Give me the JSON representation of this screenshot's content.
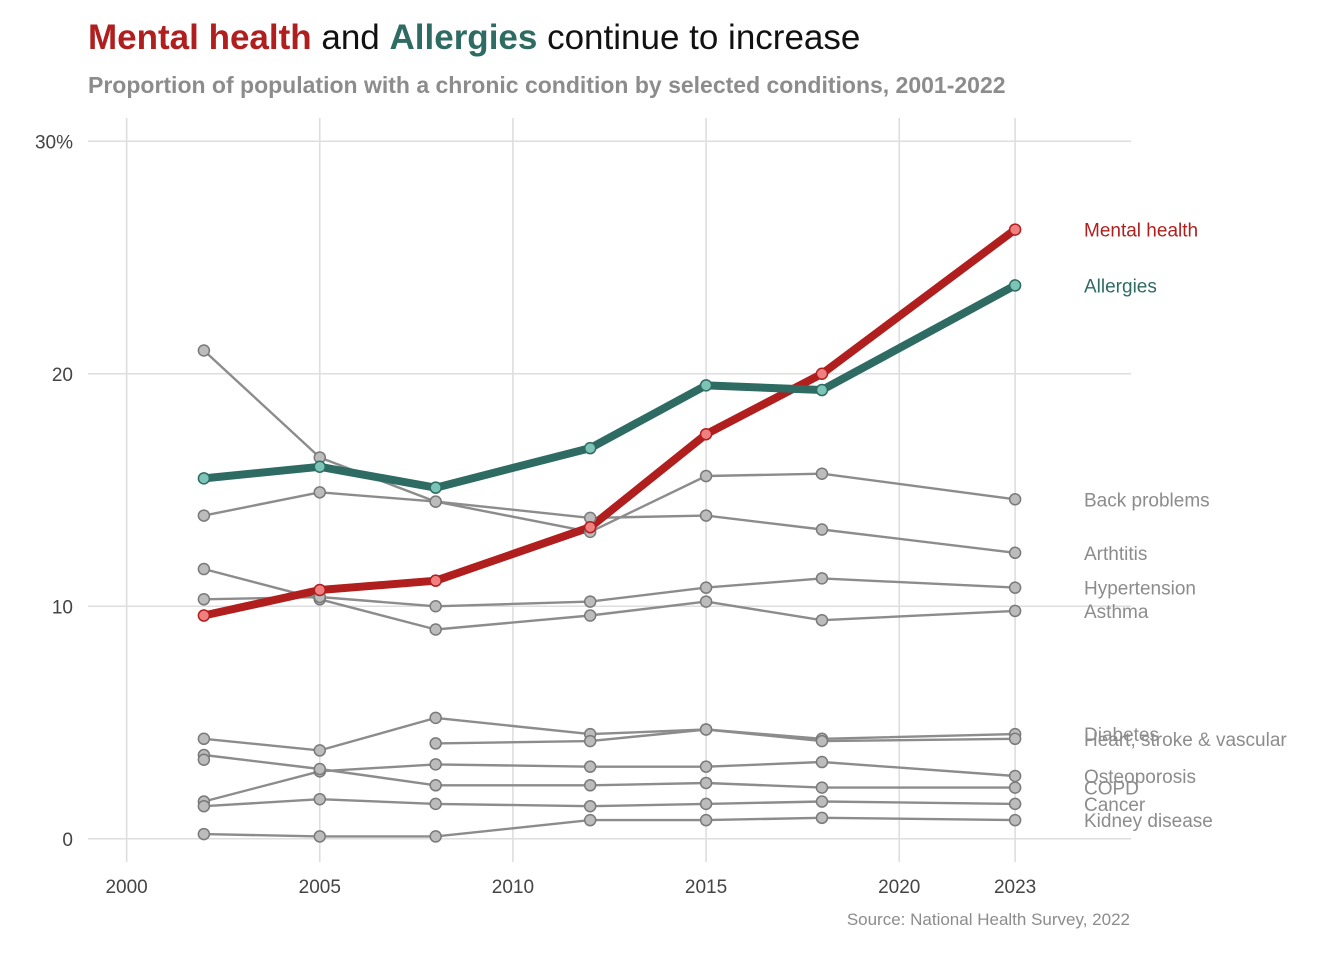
{
  "title": {
    "part1": "Mental health",
    "part2": " and ",
    "part3": "Allergies",
    "part4": " continue to increase"
  },
  "subtitle": "Proportion of population with a chronic condition by selected conditions, 2001-2022",
  "caption": "Source: National Health Survey, 2022",
  "colors": {
    "mental_health": "#b01e1e",
    "mental_health_point": "#f08080",
    "allergies": "#2e6b63",
    "allergies_point": "#7cc4b5",
    "other": "#8c8c8c",
    "other_point": "#bcbcbc"
  },
  "chart_data": {
    "type": "line",
    "xlim": [
      1999,
      2026
    ],
    "ylim": [
      -1,
      31
    ],
    "x_ticks": [
      {
        "value": 2000,
        "label": "2000"
      },
      {
        "value": 2005,
        "label": "2005"
      },
      {
        "value": 2010,
        "label": "2010"
      },
      {
        "value": 2015,
        "label": "2015"
      },
      {
        "value": 2020,
        "label": "2020"
      },
      {
        "value": 2023,
        "label": "2023"
      }
    ],
    "y_ticks": [
      {
        "value": 0,
        "label": "0"
      },
      {
        "value": 10,
        "label": "10"
      },
      {
        "value": 20,
        "label": "20"
      },
      {
        "value": 30,
        "label": "30%"
      }
    ],
    "grid": true,
    "legend": "direct labels at right",
    "series": [
      {
        "name": "Mental health",
        "highlight": "mental_health",
        "x": [
          2002,
          2005,
          2008,
          2012,
          2015,
          2018,
          2023
        ],
        "values": [
          9.6,
          10.7,
          11.1,
          13.4,
          17.4,
          20.0,
          26.2
        ]
      },
      {
        "name": "Allergies",
        "highlight": "allergies",
        "x": [
          2002,
          2005,
          2008,
          2012,
          2015,
          2018,
          2023
        ],
        "values": [
          15.5,
          16.0,
          15.1,
          16.8,
          19.5,
          19.3,
          23.8
        ]
      },
      {
        "name": "Back problems",
        "x": [
          2002,
          2005,
          2008,
          2012,
          2015,
          2018,
          2023
        ],
        "values": [
          13.9,
          14.9,
          14.5,
          13.2,
          15.6,
          15.7,
          14.6
        ]
      },
      {
        "name": "Arthtitis",
        "x": [
          2002,
          2005,
          2008,
          2012,
          2015,
          2018,
          2023
        ],
        "values": [
          21.0,
          16.4,
          14.5,
          13.8,
          13.9,
          13.3,
          12.3
        ]
      },
      {
        "name": "Asthma",
        "x": [
          2002,
          2005,
          2008,
          2012,
          2015,
          2018,
          2023
        ],
        "values": [
          11.6,
          10.3,
          9.0,
          9.6,
          10.2,
          9.4,
          9.8
        ]
      },
      {
        "name": "Hypertension",
        "x": [
          2002,
          2005,
          2008,
          2012,
          2015,
          2018,
          2023
        ],
        "values": [
          10.3,
          10.4,
          10.0,
          10.2,
          10.8,
          11.2,
          10.8
        ]
      },
      {
        "name": "Diabetes",
        "x": [
          2002,
          2005,
          2008,
          2012,
          2015,
          2018,
          2023
        ],
        "values": [
          4.3,
          3.8,
          5.2,
          4.5,
          4.7,
          4.3,
          4.5
        ]
      },
      {
        "name": "Heart, stroke & vascular",
        "x": [
          2008,
          2012,
          2015,
          2018,
          2023
        ],
        "values": [
          4.1,
          4.2,
          4.7,
          4.2,
          4.3
        ]
      },
      {
        "name": "Osteoporosis",
        "x": [
          2002,
          2005,
          2008,
          2012,
          2015,
          2018,
          2023
        ],
        "values": [
          1.6,
          2.9,
          3.2,
          3.1,
          3.1,
          3.3,
          2.7
        ]
      },
      {
        "name": "COPD",
        "x": [
          2002,
          2005,
          2008,
          2012,
          2015,
          2018,
          2023
        ],
        "values": [
          3.6,
          3.0,
          2.3,
          2.3,
          2.4,
          2.2,
          2.2
        ]
      },
      {
        "name": "Cancer",
        "x": [
          2002,
          2005,
          2008,
          2012,
          2015,
          2018,
          2023
        ],
        "values": [
          1.4,
          1.7,
          1.5,
          1.4,
          1.5,
          1.6,
          1.5
        ]
      },
      {
        "name": "Kidney disease",
        "x": [
          2002,
          2005,
          2008,
          2012,
          2015,
          2018,
          2023
        ],
        "values": [
          0.2,
          0.1,
          0.1,
          0.8,
          0.8,
          0.9,
          0.8
        ]
      }
    ],
    "extra_points": [
      {
        "series": "Diabetes",
        "x": 2002,
        "value": 3.4
      }
    ]
  }
}
